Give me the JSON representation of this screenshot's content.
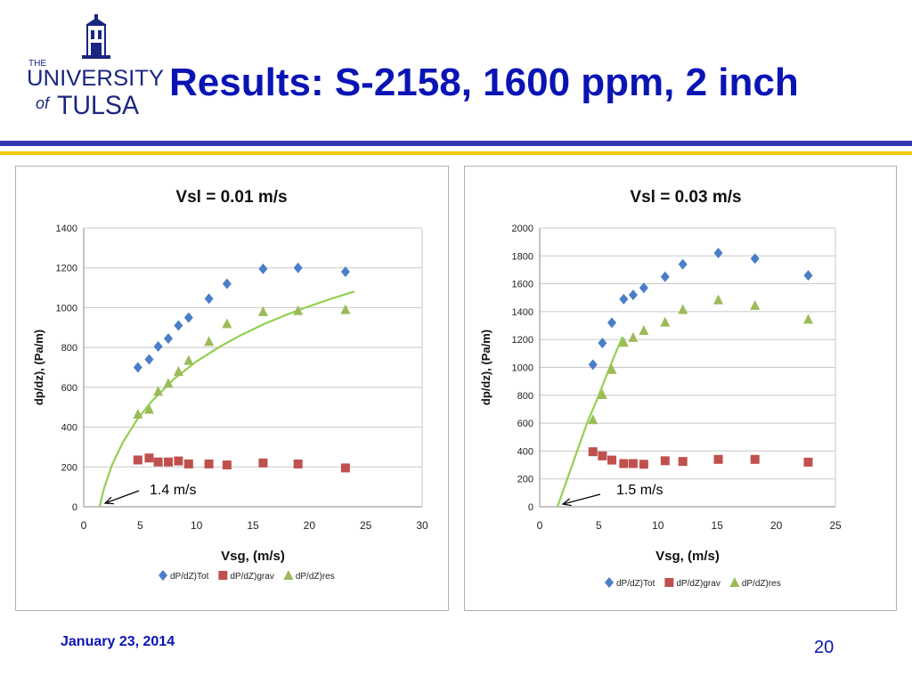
{
  "header": {
    "logo_text_the": "THE",
    "logo_text_university": "UNIVERSITY",
    "logo_text_of": "of",
    "logo_text_tulsa": "TULSA",
    "title": "Results: S-2158, 1600 ppm, 2 inch"
  },
  "footer": {
    "date": "January 23, 2014",
    "page": "20"
  },
  "colors": {
    "title": "#0a14b4",
    "tot": "#4a7ec8",
    "grav": "#c0504d",
    "res": "#9bbb59",
    "fit_line": "#92d050"
  },
  "chart_data": [
    {
      "type": "scatter",
      "title": "Vsl = 0.01 m/s",
      "xlabel": "Vsg, (m/s)",
      "ylabel": "dp/dz), (Pa/m)",
      "xlim": [
        0,
        30
      ],
      "ylim": [
        0,
        1400
      ],
      "xticks": [
        0,
        5,
        10,
        15,
        20,
        25,
        30
      ],
      "yticks": [
        0,
        200,
        400,
        600,
        800,
        1000,
        1200,
        1400
      ],
      "grid": true,
      "legend_position": "bottom",
      "series": [
        {
          "name": "dP/dZ)Tot",
          "marker": "diamond",
          "color": "#4a7ec8",
          "x": [
            4.8,
            5.8,
            6.6,
            7.5,
            8.4,
            9.3,
            11.1,
            12.7,
            15.9,
            19.0,
            23.2
          ],
          "y": [
            700,
            740,
            805,
            845,
            910,
            950,
            1045,
            1120,
            1195,
            1200,
            1180
          ]
        },
        {
          "name": "dP/dZ)grav",
          "marker": "square",
          "color": "#c0504d",
          "x": [
            4.8,
            5.8,
            6.6,
            7.5,
            8.4,
            9.3,
            11.1,
            12.7,
            15.9,
            19.0,
            23.2
          ],
          "y": [
            235,
            245,
            225,
            225,
            230,
            215,
            215,
            210,
            220,
            215,
            195
          ]
        },
        {
          "name": "dP/dZ)res",
          "marker": "triangle",
          "color": "#9bbb59",
          "x": [
            4.8,
            5.8,
            6.6,
            7.5,
            8.4,
            9.3,
            11.1,
            12.7,
            15.9,
            19.0,
            23.2
          ],
          "y": [
            465,
            490,
            580,
            620,
            680,
            735,
            830,
            920,
            980,
            985,
            990
          ]
        }
      ],
      "fit_curve": {
        "color": "#92d050",
        "x": [
          1.4,
          1.8,
          2.5,
          3.5,
          4.8,
          6.0,
          8.0,
          10.0,
          12.0,
          14.0,
          16.0,
          18.0,
          20.0,
          22.0,
          24.0
        ],
        "y": [
          0,
          92,
          209,
          327,
          443,
          528,
          642,
          730,
          802,
          864,
          918,
          965,
          1007,
          1046,
          1081
        ]
      },
      "annotation": {
        "text": "1.4 m/s",
        "x": 1.4,
        "y": 0
      }
    },
    {
      "type": "scatter",
      "title": "Vsl = 0.03 m/s",
      "xlabel": "Vsg, (m/s)",
      "ylabel": "dp/dz), (Pa/m)",
      "xlim": [
        0,
        25
      ],
      "ylim": [
        0,
        2000
      ],
      "xticks": [
        0,
        5,
        10,
        15,
        20,
        25
      ],
      "yticks": [
        0,
        200,
        400,
        600,
        800,
        1000,
        1200,
        1400,
        1600,
        1800,
        2000
      ],
      "grid": true,
      "legend_position": "bottom",
      "series": [
        {
          "name": "dP/dZ)Tot",
          "marker": "diamond",
          "color": "#4a7ec8",
          "x": [
            4.5,
            5.3,
            6.1,
            7.1,
            7.9,
            8.8,
            10.6,
            12.1,
            15.1,
            18.2,
            22.7
          ],
          "y": [
            1020,
            1175,
            1320,
            1490,
            1520,
            1570,
            1650,
            1740,
            1820,
            1780,
            1660
          ]
        },
        {
          "name": "dP/dZ)grav",
          "marker": "square",
          "color": "#c0504d",
          "x": [
            4.5,
            5.3,
            6.1,
            7.1,
            7.9,
            8.8,
            10.6,
            12.1,
            15.1,
            18.2,
            22.7
          ],
          "y": [
            395,
            365,
            335,
            310,
            310,
            305,
            330,
            325,
            340,
            340,
            320
          ]
        },
        {
          "name": "dP/dZ)res",
          "marker": "triangle",
          "color": "#9bbb59",
          "x": [
            4.5,
            5.3,
            6.1,
            7.1,
            7.9,
            8.8,
            10.6,
            12.1,
            15.1,
            18.2,
            22.7
          ],
          "y": [
            625,
            805,
            985,
            1180,
            1215,
            1265,
            1325,
            1415,
            1485,
            1445,
            1345
          ]
        }
      ],
      "fit_curve": {
        "color": "#92d050",
        "x": [
          1.5,
          2.0,
          3.0,
          4.0,
          4.8,
          5.5,
          6.2,
          7.0
        ],
        "y": [
          0,
          120,
          360,
          600,
          760,
          910,
          1060,
          1220
        ]
      },
      "annotation": {
        "text": "1.5 m/s",
        "x": 1.5,
        "y": 0
      }
    }
  ]
}
